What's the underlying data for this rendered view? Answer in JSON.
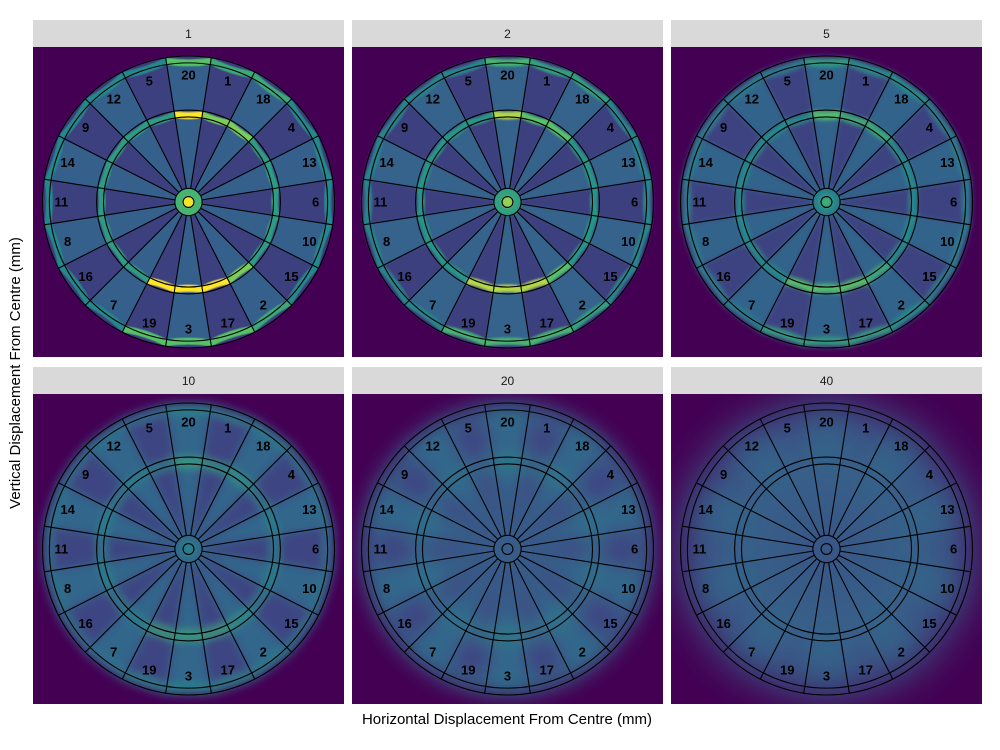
{
  "chart_data": {
    "type": "heatmap",
    "xlabel": "Horizontal Displacement From Centre (mm)",
    "ylabel": "Vertical Displacement From Centre (mm)",
    "facet_values": [
      "1",
      "2",
      "5",
      "10",
      "20",
      "40"
    ],
    "board_numbers": [
      "20",
      "1",
      "18",
      "4",
      "13",
      "6",
      "10",
      "15",
      "2",
      "17",
      "3",
      "19",
      "7",
      "16",
      "8",
      "11",
      "14",
      "9",
      "12",
      "5"
    ],
    "colormap": "viridis",
    "colors": {
      "background": "#440154",
      "low": "#3b528b",
      "mid": "#21918c",
      "high": "#5ec962",
      "max": "#fde725",
      "strip": "#d9d9d9",
      "wire": "#000000"
    }
  }
}
